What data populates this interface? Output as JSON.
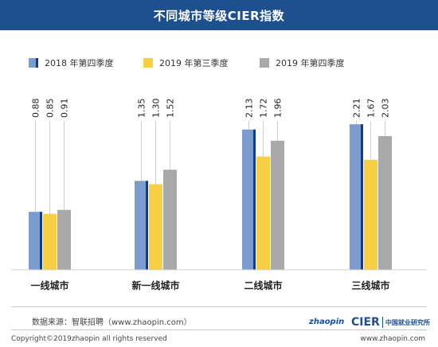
{
  "header": {
    "title": "不同城市等级CIER指数"
  },
  "footer": {
    "source": "数据来源：智联招聘（www.zhaopin.com）",
    "copyright": "Copyright©2019zhaopin all rights reserved",
    "url": "www.zhaopin.com",
    "logo_zhaopin": "zhaopin",
    "logo_zhaopin_cn": "智联招聘",
    "logo_cier": "CIER",
    "logo_cier_cn": "中国就业研究所"
  },
  "colors": {
    "header_bg": "#1e4f8f",
    "s1": "#7c9ccd",
    "s1_edge": "#0f3d8c",
    "s2": "#f7cf45",
    "s3": "#a9a9a9"
  },
  "chart_data": {
    "type": "bar",
    "title": "不同城市等级CIER指数",
    "categories": [
      "一线城市",
      "新一线城市",
      "二线城市",
      "三线城市"
    ],
    "series": [
      {
        "name": "2018 年第四季度",
        "values": [
          0.88,
          1.35,
          2.13,
          2.21
        ],
        "labels": [
          "0.88",
          "1.35",
          "2.13",
          "2.21"
        ]
      },
      {
        "name": "2019 年第三季度",
        "values": [
          0.85,
          1.3,
          1.72,
          1.67
        ],
        "labels": [
          "0.85",
          "1.30",
          "1.72",
          "1.67"
        ]
      },
      {
        "name": "2019 年第四季度",
        "values": [
          0.91,
          1.52,
          1.96,
          2.03
        ],
        "labels": [
          "0.91",
          "1.52",
          "1.96",
          "2.03"
        ]
      }
    ],
    "ylim": [
      0,
      2.55
    ],
    "grid": false,
    "legend": "top"
  }
}
